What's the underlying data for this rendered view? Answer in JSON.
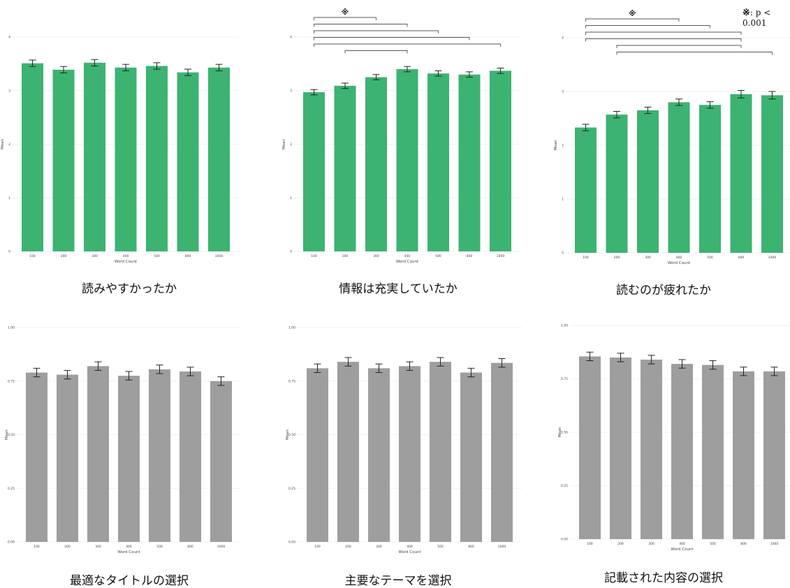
{
  "legend_note": {
    "mark": "※",
    "text": ": p < 0.001"
  },
  "chart_data": [
    {
      "type": "bar",
      "title": "読みやすかったか",
      "xlabel": "Word Count",
      "ylabel": "Mean",
      "categories": [
        "100",
        "200",
        "300",
        "400",
        "500",
        "800",
        "1000"
      ],
      "values": [
        3.51,
        3.39,
        3.52,
        3.43,
        3.46,
        3.34,
        3.43
      ],
      "errors": [
        0.06,
        0.06,
        0.06,
        0.06,
        0.06,
        0.06,
        0.06
      ],
      "ylim": [
        0,
        4
      ],
      "yticks": [
        "0",
        "1",
        "2",
        "3",
        "4"
      ],
      "color": "#3cb371",
      "significance": [],
      "grid": true
    },
    {
      "type": "bar",
      "title": "情報は充実していたか",
      "xlabel": "Word Count",
      "ylabel": "Mean",
      "categories": [
        "100",
        "200",
        "300",
        "400",
        "500",
        "800",
        "1000"
      ],
      "values": [
        2.97,
        3.09,
        3.25,
        3.4,
        3.32,
        3.3,
        3.37
      ],
      "errors": [
        0.05,
        0.05,
        0.05,
        0.05,
        0.05,
        0.05,
        0.05
      ],
      "ylim": [
        0,
        4
      ],
      "yticks": [
        "0",
        "1",
        "2",
        "3",
        "4"
      ],
      "color": "#3cb371",
      "significance": [
        {
          "from": "100",
          "to": "300",
          "mark": "※"
        },
        {
          "from": "100",
          "to": "400",
          "mark": ""
        },
        {
          "from": "100",
          "to": "500",
          "mark": ""
        },
        {
          "from": "100",
          "to": "800",
          "mark": ""
        },
        {
          "from": "100",
          "to": "1000",
          "mark": ""
        },
        {
          "from": "200",
          "to": "400",
          "mark": ""
        }
      ],
      "grid": true
    },
    {
      "type": "bar",
      "title": "読むのが疲れたか",
      "xlabel": "Word Count",
      "ylabel": "Mean",
      "categories": [
        "100",
        "200",
        "300",
        "400",
        "500",
        "800",
        "1000"
      ],
      "values": [
        2.33,
        2.57,
        2.65,
        2.8,
        2.75,
        2.95,
        2.93
      ],
      "errors": [
        0.06,
        0.06,
        0.06,
        0.06,
        0.06,
        0.07,
        0.07
      ],
      "ylim": [
        0,
        4
      ],
      "yticks": [
        "0",
        "1",
        "2",
        "3",
        "4"
      ],
      "color": "#3cb371",
      "significance": [
        {
          "from": "100",
          "to": "400",
          "mark": "※"
        },
        {
          "from": "100",
          "to": "500",
          "mark": ""
        },
        {
          "from": "100",
          "to": "800",
          "mark": ""
        },
        {
          "from": "100",
          "to": "800",
          "mark": ""
        },
        {
          "from": "200",
          "to": "800",
          "mark": ""
        },
        {
          "from": "200",
          "to": "1000",
          "mark": ""
        }
      ],
      "grid": true
    },
    {
      "type": "bar",
      "title": "最適なタイトルの選択",
      "xlabel": "Word Count",
      "ylabel": "Mean",
      "categories": [
        "100",
        "200",
        "300",
        "400",
        "500",
        "800",
        "1000"
      ],
      "values": [
        0.79,
        0.78,
        0.82,
        0.775,
        0.805,
        0.795,
        0.75
      ],
      "errors": [
        0.02,
        0.02,
        0.02,
        0.02,
        0.02,
        0.02,
        0.02
      ],
      "ylim": [
        0,
        1
      ],
      "yticks": [
        "0.00",
        "0.25",
        "0.50",
        "0.75",
        "1.00"
      ],
      "color": "#9e9e9e",
      "significance": [],
      "grid": true
    },
    {
      "type": "bar",
      "title": "主要なテーマを選択",
      "xlabel": "Word Count",
      "ylabel": "Mean",
      "categories": [
        "100",
        "200",
        "300",
        "400",
        "500",
        "800",
        "1000"
      ],
      "values": [
        0.81,
        0.84,
        0.81,
        0.82,
        0.84,
        0.79,
        0.835
      ],
      "errors": [
        0.02,
        0.02,
        0.02,
        0.02,
        0.02,
        0.02,
        0.02
      ],
      "ylim": [
        0,
        1
      ],
      "yticks": [
        "0.00",
        "0.25",
        "0.50",
        "0.75",
        "1.00"
      ],
      "color": "#9e9e9e",
      "significance": [],
      "grid": true
    },
    {
      "type": "bar",
      "title": "記載された内容の選択",
      "xlabel": "Word Count",
      "ylabel": "Mean",
      "categories": [
        "100",
        "200",
        "300",
        "400",
        "500",
        "800",
        "1000"
      ],
      "values": [
        0.855,
        0.85,
        0.84,
        0.82,
        0.815,
        0.785,
        0.785
      ],
      "errors": [
        0.02,
        0.02,
        0.02,
        0.02,
        0.02,
        0.02,
        0.02
      ],
      "ylim": [
        0,
        1
      ],
      "yticks": [
        "0.00",
        "0.25",
        "0.50",
        "0.75",
        "1.00"
      ],
      "color": "#9e9e9e",
      "significance": [],
      "grid": true
    }
  ]
}
